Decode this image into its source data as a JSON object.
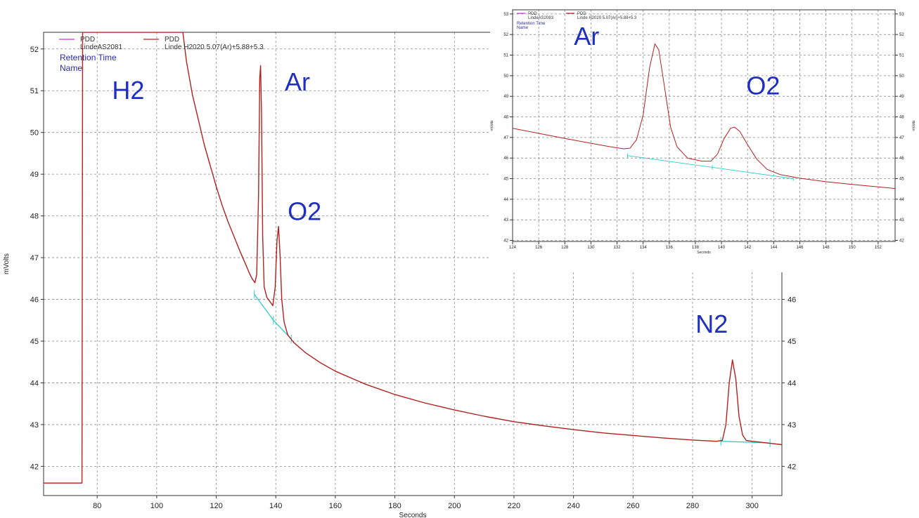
{
  "chart_data": [
    {
      "type": "line",
      "panel": "main",
      "xlabel": "Seconds",
      "ylabel": "mVolts",
      "right_ylabel": "",
      "xlim": [
        62,
        310
      ],
      "ylim": [
        41.3,
        52.4
      ],
      "x_ticks": [
        80,
        100,
        120,
        140,
        160,
        180,
        200,
        220,
        240,
        260,
        280,
        300
      ],
      "y_ticks": [
        42,
        43,
        44,
        45,
        46,
        47,
        48,
        49,
        50,
        51,
        52
      ],
      "right_y_ticks": [
        42,
        43,
        44,
        45,
        46
      ],
      "grid": true,
      "legend": {
        "position": "top-left",
        "entries": [
          {
            "color": "#cc33cc",
            "name": "PDD",
            "detail": "LindeAS2081"
          },
          {
            "color": "#b32020",
            "name": "PDD",
            "detail": "Linde H2020 5.07(Ar)+5.88+5.3"
          }
        ],
        "extra": [
          "Retention Time",
          "Name"
        ]
      },
      "series": [
        {
          "name": "PDD",
          "color": "#b32020",
          "points": [
            [
              62,
              41.6
            ],
            [
              74.9,
              41.6
            ],
            [
              75.1,
              52.4
            ],
            [
              108.8,
              52.4
            ],
            [
              110,
              51.7
            ],
            [
              112,
              50.9
            ],
            [
              114,
              50.3
            ],
            [
              116,
              49.7
            ],
            [
              118,
              49.2
            ],
            [
              120,
              48.7
            ],
            [
              122,
              48.25
            ],
            [
              124,
              47.85
            ],
            [
              126,
              47.5
            ],
            [
              128,
              47.15
            ],
            [
              130,
              46.82
            ],
            [
              131,
              46.65
            ],
            [
              132,
              46.5
            ],
            [
              133,
              46.4
            ],
            [
              133.6,
              46.6
            ],
            [
              134.2,
              48.5
            ],
            [
              134.6,
              51.3
            ],
            [
              134.9,
              51.6
            ],
            [
              135.2,
              50.5
            ],
            [
              135.6,
              47.5
            ],
            [
              136.1,
              46.3
            ],
            [
              137,
              46.05
            ],
            [
              138,
              45.95
            ],
            [
              139,
              45.85
            ],
            [
              139.8,
              46.3
            ],
            [
              140.4,
              47.4
            ],
            [
              140.9,
              47.75
            ],
            [
              141.4,
              47.1
            ],
            [
              142,
              46.0
            ],
            [
              142.8,
              45.45
            ],
            [
              144,
              45.15
            ],
            [
              146,
              44.97
            ],
            [
              150,
              44.72
            ],
            [
              155,
              44.48
            ],
            [
              160,
              44.28
            ],
            [
              170,
              43.97
            ],
            [
              180,
              43.72
            ],
            [
              190,
              43.52
            ],
            [
              200,
              43.35
            ],
            [
              210,
              43.2
            ],
            [
              220,
              43.07
            ],
            [
              230,
              42.97
            ],
            [
              240,
              42.88
            ],
            [
              250,
              42.8
            ],
            [
              260,
              42.74
            ],
            [
              270,
              42.68
            ],
            [
              280,
              42.63
            ],
            [
              288,
              42.6
            ],
            [
              290,
              42.62
            ],
            [
              291.2,
              43.0
            ],
            [
              292.3,
              44.0
            ],
            [
              293.4,
              44.55
            ],
            [
              294.5,
              44.1
            ],
            [
              295.6,
              43.2
            ],
            [
              296.8,
              42.75
            ],
            [
              298,
              42.62
            ],
            [
              300,
              42.6
            ],
            [
              305,
              42.56
            ],
            [
              310,
              42.52
            ]
          ]
        }
      ],
      "baseline_segments": [
        {
          "color": "#33cccc",
          "points": [
            [
              132.8,
              46.12
            ],
            [
              139.2,
              45.5
            ],
            [
              145.2,
              45.05
            ]
          ]
        },
        {
          "color": "#33cccc",
          "points": [
            [
              289.5,
              42.6
            ],
            [
              306,
              42.56
            ]
          ]
        }
      ],
      "annotations": [
        {
          "text": "H2",
          "x": 85,
          "y": 50.8
        },
        {
          "text": "Ar",
          "x": 143,
          "y": 51.0
        },
        {
          "text": "O2",
          "x": 144,
          "y": 47.9
        },
        {
          "text": "N2",
          "x": 281,
          "y": 45.2
        }
      ]
    },
    {
      "type": "line",
      "panel": "inset",
      "xlabel": "Seconds",
      "ylabel": "mVolts",
      "right_ylabel": "mVolts",
      "xlim": [
        124,
        153.3
      ],
      "ylim": [
        41.95,
        53.2
      ],
      "x_ticks": [
        124,
        126,
        128,
        130,
        132,
        134,
        136,
        138,
        140,
        142,
        144,
        146,
        148,
        150,
        152
      ],
      "y_ticks": [
        42,
        43,
        44,
        45,
        46,
        47,
        48,
        49,
        50,
        51,
        52,
        53
      ],
      "grid": true,
      "legend": {
        "position": "top-left",
        "entries": [
          {
            "color": "#cc33cc",
            "name": "PDD",
            "detail": "LindeAS2083"
          },
          {
            "color": "#b32020",
            "name": "PDD",
            "detail": "Linde H2020 5.07(Ar)+5.88+5.3"
          }
        ],
        "extra": [
          "Retention Time",
          "Name"
        ]
      },
      "series": [
        {
          "name": "PDD",
          "color": "#b32020",
          "points": [
            [
              124,
              47.45
            ],
            [
              126,
              47.2
            ],
            [
              128,
              46.95
            ],
            [
              130,
              46.72
            ],
            [
              131.5,
              46.55
            ],
            [
              132.5,
              46.45
            ],
            [
              133,
              46.48
            ],
            [
              133.5,
              46.9
            ],
            [
              134,
              48.1
            ],
            [
              134.5,
              50.4
            ],
            [
              134.9,
              51.55
            ],
            [
              135.2,
              51.25
            ],
            [
              135.6,
              49.6
            ],
            [
              136.1,
              47.5
            ],
            [
              136.6,
              46.55
            ],
            [
              137.4,
              46.0
            ],
            [
              138.5,
              45.85
            ],
            [
              139.2,
              45.85
            ],
            [
              139.7,
              46.2
            ],
            [
              140.2,
              46.95
            ],
            [
              140.7,
              47.45
            ],
            [
              141,
              47.5
            ],
            [
              141.4,
              47.3
            ],
            [
              142,
              46.65
            ],
            [
              142.7,
              45.95
            ],
            [
              143.5,
              45.45
            ],
            [
              144.5,
              45.2
            ],
            [
              146,
              45.02
            ],
            [
              148,
              44.85
            ],
            [
              150,
              44.72
            ],
            [
              152,
              44.6
            ],
            [
              153.3,
              44.52
            ]
          ]
        }
      ],
      "baseline_segments": [
        {
          "color": "#33cccc",
          "points": [
            [
              132.8,
              46.12
            ],
            [
              139.3,
              45.55
            ],
            [
              145.5,
              45.0
            ]
          ]
        }
      ],
      "annotations": [
        {
          "text": "Ar",
          "x": 128.7,
          "y": 51.5
        },
        {
          "text": "O2",
          "x": 141.9,
          "y": 49.1
        }
      ]
    }
  ]
}
